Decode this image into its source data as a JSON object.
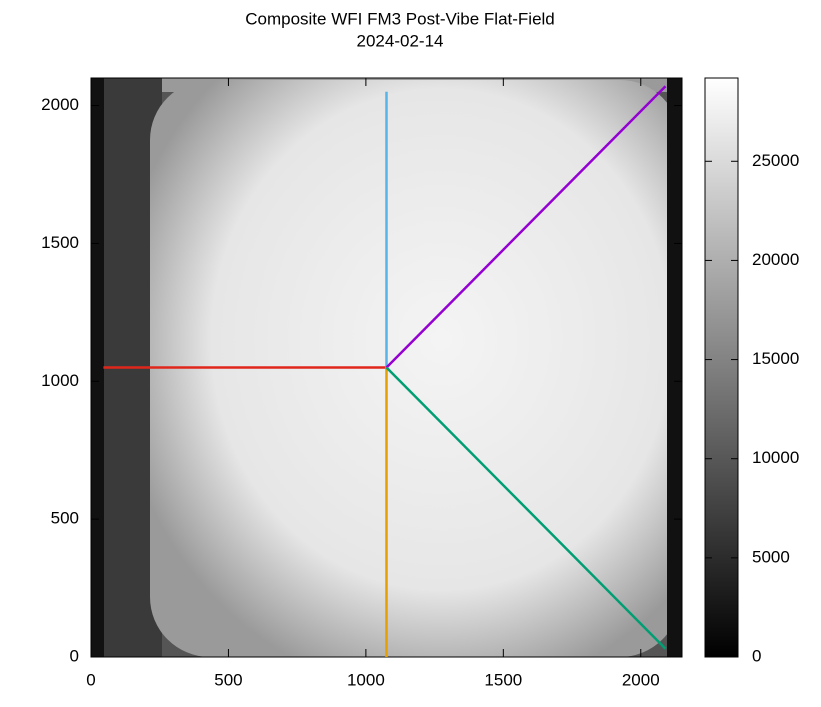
{
  "chart_data": {
    "type": "heatmap",
    "title": "Composite WFI FM3 Post-Vibe Flat-Field",
    "subtitle": "2024-02-14",
    "xlim": [
      0,
      2150
    ],
    "xticks": [
      0,
      500,
      1000,
      1500,
      2000
    ],
    "ylim": [
      0,
      2100
    ],
    "yticks": [
      0,
      500,
      1000,
      1500,
      2000
    ],
    "colormap": "gray",
    "clim": [
      0,
      29200
    ],
    "cticks": [
      0,
      5000,
      10000,
      15000,
      20000,
      25000
    ],
    "series": [
      {
        "color": "#e0261b",
        "x": [
          45,
          1075
        ],
        "values": [
          1050,
          1050
        ]
      },
      {
        "color": "#56b4e9",
        "x": [
          1075,
          1075
        ],
        "values": [
          1050,
          2050
        ]
      },
      {
        "color": "#e69f00",
        "x": [
          1075,
          1075
        ],
        "values": [
          0,
          1050
        ]
      },
      {
        "color": "#9400d3",
        "x": [
          1075,
          2090
        ],
        "values": [
          1050,
          2070
        ]
      },
      {
        "color": "#009e73",
        "x": [
          1075,
          2090
        ],
        "values": [
          1050,
          30
        ]
      }
    ]
  }
}
